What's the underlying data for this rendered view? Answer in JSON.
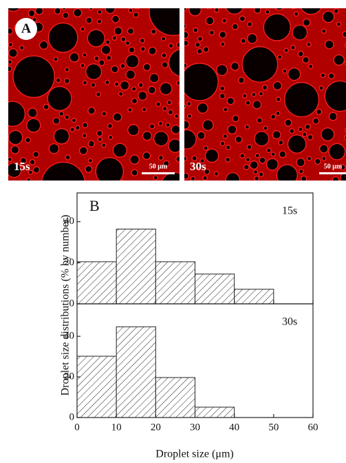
{
  "images": [
    {
      "label": "A",
      "time": "15s",
      "scale_bar": "50 μm"
    },
    {
      "time": "30s",
      "scale_bar": "50 μm"
    }
  ],
  "chart_data": [
    {
      "type": "histogram",
      "panel_label": "B",
      "annotation": "15s",
      "y_label": "Droplet size distributions (% by number)",
      "bins": [
        0,
        10,
        20,
        30,
        40,
        50
      ],
      "values": [
        20.5,
        36.4,
        20.5,
        14.5,
        7.1
      ],
      "xlim": [
        0,
        60
      ],
      "xticks": [
        0,
        10,
        20,
        30,
        40,
        50,
        60
      ],
      "ylim": [
        0,
        54
      ],
      "yticks": [
        0,
        20,
        40
      ]
    },
    {
      "type": "histogram",
      "annotation": "30s",
      "x_label": "Droplet size (μm)",
      "bins": [
        0,
        10,
        20,
        30,
        40
      ],
      "values": [
        30.2,
        44.7,
        19.7,
        5.1
      ],
      "xlim": [
        0,
        60
      ],
      "xticks": [
        0,
        10,
        20,
        30,
        40,
        50,
        60
      ],
      "ylim": [
        0,
        56
      ],
      "yticks": [
        0,
        20,
        40
      ]
    }
  ]
}
